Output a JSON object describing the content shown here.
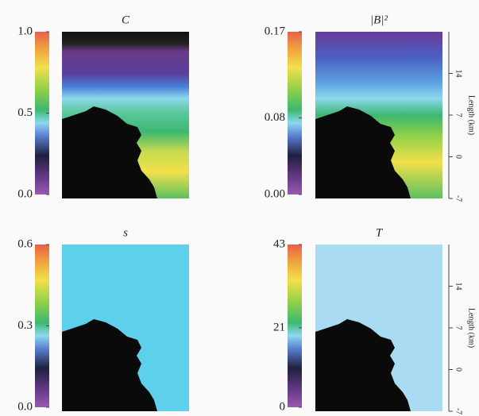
{
  "chart_data": [
    {
      "type": "heatmap",
      "title": "C",
      "clim": [
        0,
        1
      ],
      "cticks": [
        {
          "value": 0,
          "label": "0.0"
        },
        {
          "value": 0.5,
          "label": "0.5"
        },
        {
          "value": 1,
          "label": "1.0"
        }
      ]
    },
    {
      "type": "heatmap",
      "title": "|B|²",
      "clim": [
        0,
        0.17
      ],
      "cticks": [
        {
          "value": 0,
          "label": "0.00"
        },
        {
          "value": 0.08,
          "label": "0.08"
        },
        {
          "value": 0.17,
          "label": "0.17"
        }
      ],
      "ylabel": "Length (km)",
      "ylim": [
        -7,
        21
      ],
      "yticks": [
        -7,
        0,
        7,
        14
      ]
    },
    {
      "type": "heatmap",
      "title": "s",
      "clim": [
        0,
        0.6
      ],
      "cticks": [
        {
          "value": 0,
          "label": "0.0"
        },
        {
          "value": 0.3,
          "label": "0.3"
        },
        {
          "value": 0.6,
          "label": "0.6"
        }
      ]
    },
    {
      "type": "heatmap",
      "title": "T",
      "clim": [
        0,
        43
      ],
      "cticks": [
        0,
        21,
        43
      ],
      "ylabel": "Length (km)",
      "ylim": [
        -7,
        21
      ],
      "yticks": [
        -7,
        0,
        7,
        14
      ]
    }
  ]
}
